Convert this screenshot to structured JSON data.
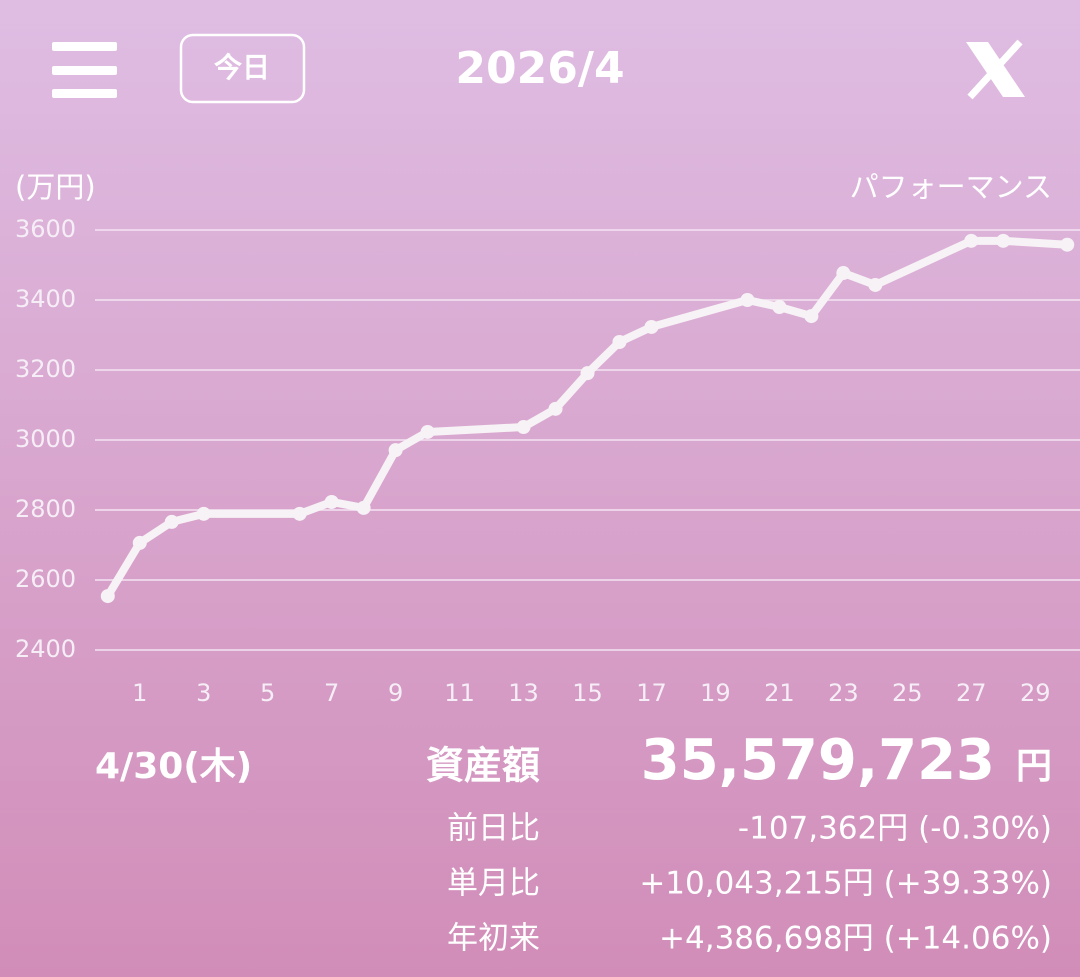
{
  "header": {
    "today_button": "今日",
    "month": "2026/4"
  },
  "chart_data": {
    "type": "line",
    "y_unit_label": "(万円)",
    "title": "パフォーマンス",
    "x": [
      0,
      1,
      2,
      3,
      6,
      7,
      8,
      9,
      10,
      13,
      14,
      15,
      16,
      17,
      20,
      21,
      22,
      23,
      24,
      27,
      28,
      30
    ],
    "series": [
      {
        "color": "#f7f2f5",
        "values": [
          2554,
          2706,
          2766,
          2789,
          2789,
          2823,
          2806,
          2971,
          3023,
          3037,
          3089,
          3191,
          3280,
          3323,
          3400,
          3380,
          3354,
          3477,
          3443,
          3569,
          3569,
          3558
        ]
      }
    ],
    "xlim": [
      -0.4,
      30.4
    ],
    "ylim": [
      2400,
      3600
    ],
    "xticks": [
      1,
      3,
      5,
      7,
      9,
      11,
      13,
      15,
      17,
      19,
      21,
      23,
      25,
      27,
      29
    ],
    "yticks": [
      2400,
      2600,
      2800,
      3000,
      3200,
      3400,
      3600
    ],
    "grid": true
  },
  "summary": {
    "date": "4/30(木)",
    "label": "資産額",
    "amount": "35,579,723",
    "currency": "円",
    "rows": [
      {
        "label": "前日比",
        "value": "-107,362円 (-0.30%)"
      },
      {
        "label": "単月比",
        "value": "+10,043,215円 (+39.33%)"
      },
      {
        "label": "年初来",
        "value": "+4,386,698円 (+14.06%)"
      }
    ]
  }
}
